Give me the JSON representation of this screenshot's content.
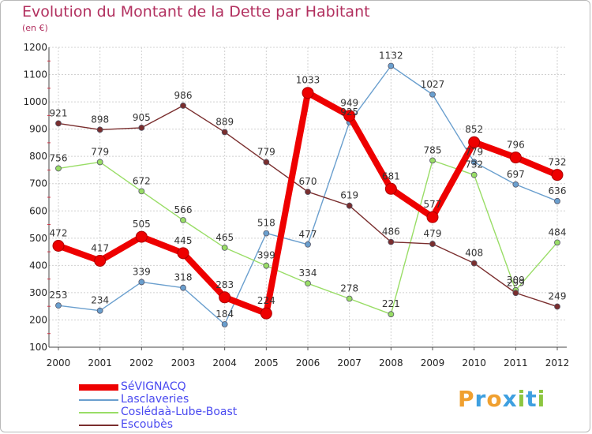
{
  "chart_data": {
    "type": "line",
    "title": "Evolution du Montant de la Dette par Habitant",
    "subtitle": "(en €)",
    "x": [
      "2000",
      "2001",
      "2002",
      "2003",
      "2004",
      "2005",
      "2006",
      "2007",
      "2008",
      "2009",
      "2010",
      "2011",
      "2012"
    ],
    "ylim": [
      100,
      1200
    ],
    "yticks": [
      100,
      200,
      300,
      400,
      500,
      600,
      700,
      800,
      900,
      1000,
      1100,
      1200
    ],
    "grid": true,
    "legend_placement": "bottom-left",
    "series": [
      {
        "name": "SéVIGNACQ",
        "color": "#ee0000",
        "emphasis": true,
        "values": [
          472,
          417,
          505,
          445,
          283,
          224,
          1033,
          949,
          681,
          577,
          852,
          796,
          732
        ],
        "labels": [
          "472",
          "417",
          "505",
          "445",
          "283",
          "224",
          "1033",
          "949",
          "681",
          "577",
          "852",
          "796",
          "732"
        ]
      },
      {
        "name": "Lasclaveries",
        "color": "#6a9fce",
        "emphasis": false,
        "values": [
          253,
          234,
          339,
          318,
          184,
          518,
          477,
          925,
          1132,
          1027,
          779,
          697,
          636
        ],
        "labels": [
          "253",
          "234",
          "339",
          "318",
          "184",
          "518",
          "477",
          "925",
          "1132",
          "1027",
          "779",
          "697",
          "636"
        ]
      },
      {
        "name": "Coslédaà-Lube-Boast",
        "color": "#99dd66",
        "emphasis": false,
        "values": [
          756,
          779,
          672,
          566,
          465,
          399,
          334,
          278,
          221,
          785,
          732,
          309,
          484
        ],
        "labels": [
          "756",
          "779",
          "672",
          "566",
          "465",
          "399",
          "334",
          "278",
          "221",
          "785",
          "732",
          "309",
          "484"
        ]
      },
      {
        "name": "Escoubès",
        "color": "#7a2e2e",
        "emphasis": false,
        "values": [
          921,
          898,
          905,
          986,
          889,
          779,
          670,
          619,
          486,
          479,
          408,
          299,
          249
        ],
        "labels": [
          "921",
          "898",
          "905",
          "986",
          "889",
          "779",
          "670",
          "619",
          "486",
          "479",
          "408",
          "299",
          "249"
        ]
      }
    ]
  },
  "brand": {
    "name": "Proxiti",
    "letters": [
      "P",
      "r",
      "o",
      "x",
      "i",
      "t",
      "i"
    ],
    "colors": [
      "#f0a030",
      "#3fa0e0",
      "#f0a030",
      "#3fa0e0",
      "#8cc63f",
      "#3fa0e0",
      "#8cc63f"
    ]
  }
}
